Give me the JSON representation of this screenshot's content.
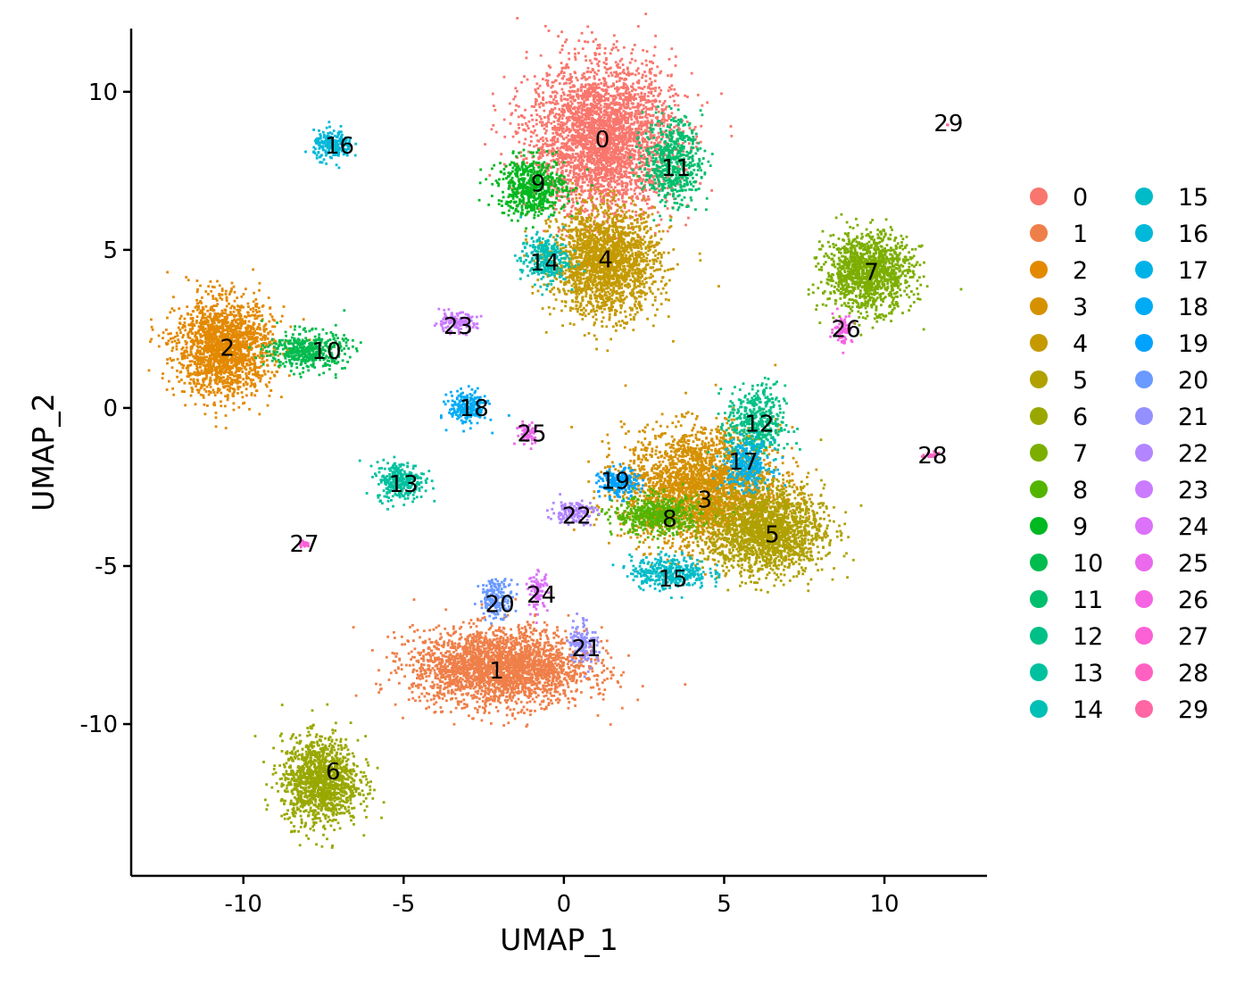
{
  "chart_data": {
    "type": "scatter",
    "xlabel": "UMAP_1",
    "ylabel": "UMAP_2",
    "xlim": [
      -13.5,
      13.2
    ],
    "ylim": [
      -14.8,
      12.0
    ],
    "xticks": [
      -10,
      -5,
      0,
      5,
      10
    ],
    "yticks": [
      -10,
      -5,
      0,
      5,
      10
    ],
    "xtick_labels": [
      "-10",
      "-5",
      "0",
      "5",
      "10"
    ],
    "ytick_labels": [
      "-10",
      "-5",
      "0",
      "5",
      "10"
    ],
    "grid": false,
    "legend_placement": "right",
    "legend_columns": 2,
    "clusters": [
      {
        "id": "0",
        "label": "0",
        "color": "#F8766D",
        "x": 1.2,
        "y": 8.5,
        "sx": 1.5,
        "sy": 1.6,
        "n": 3200
      },
      {
        "id": "1",
        "label": "1",
        "color": "#EF7F49",
        "x": -2.0,
        "y": -8.2,
        "sx": 1.8,
        "sy": 0.8,
        "n": 2600
      },
      {
        "id": "2",
        "label": "2",
        "color": "#E38900",
        "x": -10.6,
        "y": 1.9,
        "sx": 1.0,
        "sy": 1.0,
        "n": 1800
      },
      {
        "id": "3",
        "label": "3",
        "color": "#D59100",
        "x": 4.3,
        "y": -2.5,
        "sx": 1.6,
        "sy": 1.2,
        "n": 2600
      },
      {
        "id": "4",
        "label": "4",
        "color": "#C49A00",
        "x": 1.3,
        "y": 4.6,
        "sx": 1.1,
        "sy": 1.1,
        "n": 2000
      },
      {
        "id": "5",
        "label": "5",
        "color": "#B0A100",
        "x": 6.3,
        "y": -3.9,
        "sx": 1.2,
        "sy": 0.9,
        "n": 1800
      },
      {
        "id": "6",
        "label": "6",
        "color": "#99A800",
        "x": -7.6,
        "y": -11.8,
        "sx": 0.8,
        "sy": 0.9,
        "n": 1300
      },
      {
        "id": "7",
        "label": "7",
        "color": "#7CAE00",
        "x": 9.5,
        "y": 4.3,
        "sx": 0.9,
        "sy": 0.8,
        "n": 1300
      },
      {
        "id": "8",
        "label": "8",
        "color": "#53B400",
        "x": 2.9,
        "y": -3.4,
        "sx": 0.9,
        "sy": 0.4,
        "n": 500
      },
      {
        "id": "9",
        "label": "9",
        "color": "#00B81F",
        "x": -1.0,
        "y": 7.0,
        "sx": 0.7,
        "sy": 0.6,
        "n": 600
      },
      {
        "id": "10",
        "label": "10",
        "color": "#00BB4E",
        "x": -8.0,
        "y": 1.8,
        "sx": 0.8,
        "sy": 0.4,
        "n": 450
      },
      {
        "id": "11",
        "label": "11",
        "color": "#00BE6C",
        "x": 3.4,
        "y": 7.8,
        "sx": 0.6,
        "sy": 0.9,
        "n": 550
      },
      {
        "id": "12",
        "label": "12",
        "color": "#00C087",
        "x": 6.0,
        "y": -0.5,
        "sx": 0.6,
        "sy": 0.8,
        "n": 450
      },
      {
        "id": "13",
        "label": "13",
        "color": "#00C19F",
        "x": -5.1,
        "y": -2.3,
        "sx": 0.5,
        "sy": 0.4,
        "n": 300
      },
      {
        "id": "14",
        "label": "14",
        "color": "#00BFB4",
        "x": -0.6,
        "y": 4.7,
        "sx": 0.5,
        "sy": 0.5,
        "n": 300
      },
      {
        "id": "15",
        "label": "15",
        "color": "#00BCC8",
        "x": 3.3,
        "y": -5.2,
        "sx": 0.8,
        "sy": 0.35,
        "n": 350
      },
      {
        "id": "16",
        "label": "16",
        "color": "#00B8D9",
        "x": -7.2,
        "y": 8.3,
        "sx": 0.4,
        "sy": 0.3,
        "n": 220
      },
      {
        "id": "17",
        "label": "17",
        "color": "#00B2E8",
        "x": 5.7,
        "y": -1.8,
        "sx": 0.5,
        "sy": 0.5,
        "n": 300
      },
      {
        "id": "18",
        "label": "18",
        "color": "#00ABF5",
        "x": -3.0,
        "y": 0.0,
        "sx": 0.4,
        "sy": 0.35,
        "n": 220
      },
      {
        "id": "19",
        "label": "19",
        "color": "#00A2FF",
        "x": 1.7,
        "y": -2.4,
        "sx": 0.4,
        "sy": 0.3,
        "n": 200
      },
      {
        "id": "20",
        "label": "20",
        "color": "#6A99FF",
        "x": -2.1,
        "y": -6.0,
        "sx": 0.35,
        "sy": 0.4,
        "n": 180
      },
      {
        "id": "21",
        "label": "21",
        "color": "#9590FF",
        "x": 0.6,
        "y": -7.4,
        "sx": 0.3,
        "sy": 0.5,
        "n": 130
      },
      {
        "id": "22",
        "label": "22",
        "color": "#B385FF",
        "x": 0.3,
        "y": -3.3,
        "sx": 0.45,
        "sy": 0.25,
        "n": 140
      },
      {
        "id": "23",
        "label": "23",
        "color": "#CA7BFF",
        "x": -3.4,
        "y": 2.7,
        "sx": 0.45,
        "sy": 0.2,
        "n": 140
      },
      {
        "id": "24",
        "label": "24",
        "color": "#DC71FA",
        "x": -0.8,
        "y": -5.8,
        "sx": 0.2,
        "sy": 0.4,
        "n": 90
      },
      {
        "id": "25",
        "label": "25",
        "color": "#EA69EC",
        "x": -1.1,
        "y": -0.8,
        "sx": 0.25,
        "sy": 0.25,
        "n": 70
      },
      {
        "id": "26",
        "label": "26",
        "color": "#F564E3",
        "x": 8.7,
        "y": 2.5,
        "sx": 0.2,
        "sy": 0.3,
        "n": 70
      },
      {
        "id": "27",
        "label": "27",
        "color": "#FC61D5",
        "x": -8.1,
        "y": -4.3,
        "sx": 0.1,
        "sy": 0.08,
        "n": 25
      },
      {
        "id": "28",
        "label": "28",
        "color": "#FF61C3",
        "x": 11.5,
        "y": -1.5,
        "sx": 0.2,
        "sy": 0.06,
        "n": 25
      },
      {
        "id": "29",
        "label": "29",
        "color": "#FF67A4",
        "x": 12.0,
        "y": 9.0,
        "sx": 0.05,
        "sy": 0.05,
        "n": 2
      }
    ],
    "labels_on_plot": [
      {
        "text": "0",
        "x": 1.2,
        "y": 8.5
      },
      {
        "text": "1",
        "x": -2.1,
        "y": -8.3
      },
      {
        "text": "2",
        "x": -10.5,
        "y": 1.9
      },
      {
        "text": "3",
        "x": 4.4,
        "y": -2.9
      },
      {
        "text": "4",
        "x": 1.3,
        "y": 4.7
      },
      {
        "text": "5",
        "x": 6.5,
        "y": -4.0
      },
      {
        "text": "6",
        "x": -7.2,
        "y": -11.5
      },
      {
        "text": "7",
        "x": 9.6,
        "y": 4.3
      },
      {
        "text": "8",
        "x": 3.3,
        "y": -3.5
      },
      {
        "text": "9",
        "x": -0.8,
        "y": 7.1
      },
      {
        "text": "10",
        "x": -7.4,
        "y": 1.8
      },
      {
        "text": "11",
        "x": 3.5,
        "y": 7.6
      },
      {
        "text": "12",
        "x": 6.1,
        "y": -0.5
      },
      {
        "text": "13",
        "x": -5.0,
        "y": -2.4
      },
      {
        "text": "14",
        "x": -0.6,
        "y": 4.6
      },
      {
        "text": "15",
        "x": 3.4,
        "y": -5.4
      },
      {
        "text": "16",
        "x": -7.0,
        "y": 8.3
      },
      {
        "text": "17",
        "x": 5.6,
        "y": -1.7
      },
      {
        "text": "18",
        "x": -2.8,
        "y": 0.0
      },
      {
        "text": "19",
        "x": 1.6,
        "y": -2.3
      },
      {
        "text": "20",
        "x": -2.0,
        "y": -6.2
      },
      {
        "text": "21",
        "x": 0.7,
        "y": -7.6
      },
      {
        "text": "22",
        "x": 0.4,
        "y": -3.4
      },
      {
        "text": "23",
        "x": -3.3,
        "y": 2.6
      },
      {
        "text": "24",
        "x": -0.7,
        "y": -5.9
      },
      {
        "text": "25",
        "x": -1.0,
        "y": -0.8
      },
      {
        "text": "26",
        "x": 8.8,
        "y": 2.5
      },
      {
        "text": "27",
        "x": -8.1,
        "y": -4.3
      },
      {
        "text": "28",
        "x": 11.5,
        "y": -1.5
      },
      {
        "text": "29",
        "x": 12.0,
        "y": 9.0
      }
    ]
  }
}
